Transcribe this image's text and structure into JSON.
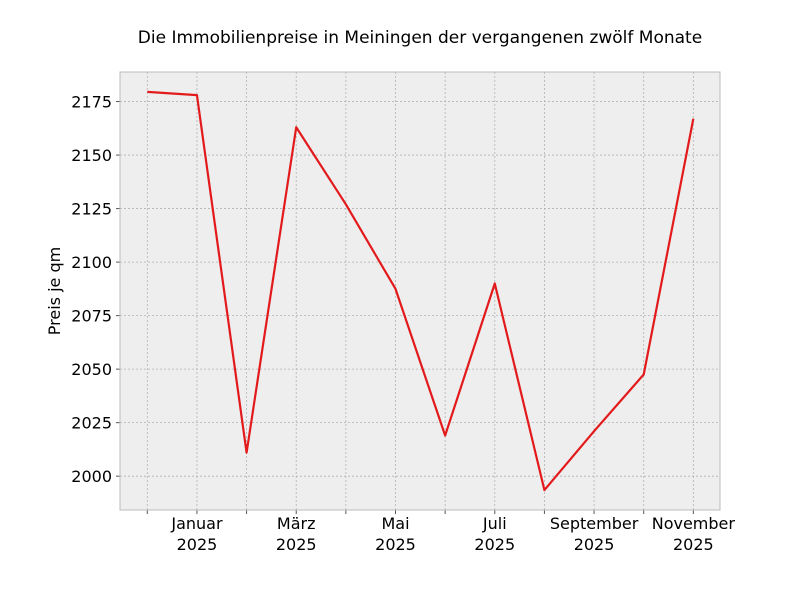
{
  "chart_data": {
    "type": "line",
    "title": "Die Immobilienpreise in Meiningen der vergangenen zwölf Monate",
    "xlabel": "",
    "ylabel": "Preis je qm",
    "x": [
      "2024-12",
      "2025-01",
      "2025-02",
      "2025-03",
      "2025-04",
      "2025-05",
      "2025-06",
      "2025-07",
      "2025-08",
      "2025-09",
      "2025-10",
      "2025-11"
    ],
    "series": [
      {
        "values": [
          2179.5,
          2178,
          2011,
          2163,
          2127,
          2087.5,
          2019,
          2090,
          1993.5,
          2021,
          2047.5,
          2167
        ]
      }
    ],
    "x_tick_labels": [
      {
        "x": "2025-01",
        "line1": "Januar",
        "line2": "2025"
      },
      {
        "x": "2025-03",
        "line1": "März",
        "line2": "2025"
      },
      {
        "x": "2025-05",
        "line1": "Mai",
        "line2": "2025"
      },
      {
        "x": "2025-07",
        "line1": "Juli",
        "line2": "2025"
      },
      {
        "x": "2025-09",
        "line1": "September",
        "line2": "2025"
      },
      {
        "x": "2025-11",
        "line1": "November",
        "line2": "2025"
      }
    ],
    "yticks": [
      2000,
      2025,
      2050,
      2075,
      2100,
      2125,
      2150,
      2175
    ],
    "ylim": [
      1984.2,
      2188.8
    ],
    "grid": true,
    "colors": {
      "line": "#e31a1c",
      "background": "#eeeeee",
      "grid": "#b2b2b2",
      "frame": "#bcbcbc"
    }
  }
}
